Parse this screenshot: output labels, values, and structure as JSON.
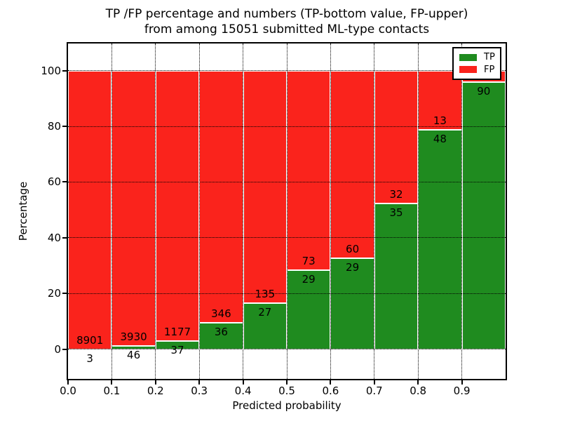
{
  "figure": {
    "title_line1": "TP /FP percentage and numbers (TP-bottom value, FP-upper)",
    "title_line2": "from among 15051 submitted ML-type contacts",
    "xlabel": "Predicted probability",
    "ylabel": "Percentage"
  },
  "legend": {
    "position": "upper-right",
    "items": [
      {
        "label": "TP",
        "color": "#1f8b1f"
      },
      {
        "label": "FP",
        "color": "#fa231c"
      }
    ]
  },
  "chart_data": {
    "type": "bar",
    "stacked": true,
    "values_are": "percent_of_bin_total",
    "title": "TP /FP percentage and numbers (TP-bottom value, FP-upper) from among 15051 submitted ML-type contacts",
    "xlabel": "Predicted probability",
    "ylabel": "Percentage",
    "total_contacts": 15051,
    "bin_edges": [
      0.0,
      0.1,
      0.2,
      0.3,
      0.4,
      0.5,
      0.6,
      0.7,
      0.8,
      0.9,
      1.0
    ],
    "series": [
      {
        "name": "TP",
        "color": "#1f8b1f",
        "counts": [
          3,
          46,
          37,
          36,
          27,
          29,
          29,
          35,
          48,
          90
        ],
        "label_visible": [
          true,
          true,
          true,
          true,
          true,
          true,
          true,
          true,
          true,
          true
        ]
      },
      {
        "name": "FP",
        "color": "#fa231c",
        "counts": [
          8901,
          3930,
          1177,
          346,
          135,
          73,
          60,
          32,
          13,
          4
        ],
        "label_visible": [
          true,
          true,
          true,
          true,
          true,
          true,
          true,
          true,
          true,
          false
        ]
      }
    ],
    "xlim": [
      0.0,
      1.0
    ],
    "ylim": [
      -10.6,
      109.7
    ],
    "xtick_values": [
      0.0,
      0.1,
      0.2,
      0.3,
      0.4,
      0.5,
      0.6,
      0.7,
      0.8,
      0.9
    ],
    "xtick_labels": [
      "0.0",
      "0.1",
      "0.2",
      "0.3",
      "0.4",
      "0.5",
      "0.6",
      "0.7",
      "0.8",
      "0.9"
    ],
    "ytick_values": [
      0,
      20,
      40,
      60,
      80,
      100
    ],
    "ytick_labels": [
      "0",
      "20",
      "40",
      "60",
      "80",
      "100"
    ],
    "grid": "dotted-black-both-axes",
    "bar_edge_color": "#ffffff",
    "annotation_rule": "TP count below segment boundary, FP count above segment boundary",
    "legend_position": "upper right"
  }
}
